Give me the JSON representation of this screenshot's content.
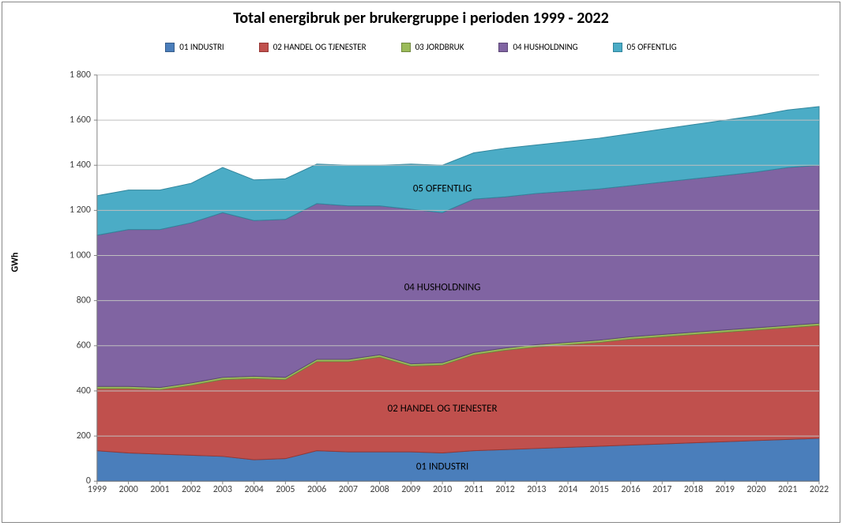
{
  "chart": {
    "type": "stacked-area",
    "title": "Total energibruk per brukergruppe i perioden 1999 - 2022",
    "title_fontsize": 20,
    "ylabel": "GWh",
    "background_color": "#ffffff",
    "border_color": "#888888",
    "axis_color": "#808080",
    "gridline_color": "#bfbfbf",
    "tick_fontsize": 12,
    "legend_fontsize": 11,
    "categories": [
      "1999",
      "2000",
      "2001",
      "2002",
      "2003",
      "2004",
      "2005",
      "2006",
      "2007",
      "2008",
      "2009",
      "2010",
      "2011",
      "2012",
      "2013",
      "2014",
      "2015",
      "2016",
      "2017",
      "2018",
      "2019",
      "2020",
      "2021",
      "2022"
    ],
    "ylim": [
      0,
      1800
    ],
    "ytick_step": 200,
    "ytick_format": "space_thousands",
    "series": [
      {
        "key": "01 INDUSTRI",
        "fill": "#4a7ebb",
        "stroke": "#385d8a",
        "values": [
          135,
          125,
          120,
          115,
          110,
          95,
          100,
          135,
          130,
          130,
          130,
          125,
          135,
          140,
          145,
          150,
          155,
          160,
          165,
          170,
          175,
          180,
          185,
          190
        ],
        "area_label": "01 INDUSTRI",
        "label_x_index": 11
      },
      {
        "key": "02 HANDEL OG TJENESTER",
        "fill": "#c0504d",
        "stroke": "#953735",
        "values": [
          275,
          285,
          285,
          310,
          340,
          360,
          350,
          395,
          400,
          420,
          380,
          390,
          425,
          440,
          450,
          455,
          460,
          470,
          475,
          480,
          485,
          490,
          495,
          500
        ],
        "area_label": "02 HANDEL OG TJENESTER",
        "label_x_index": 11
      },
      {
        "key": "03 JORDBRUK",
        "fill": "#9bbb59",
        "stroke": "#71893f",
        "values": [
          10,
          10,
          10,
          10,
          10,
          10,
          10,
          10,
          10,
          10,
          10,
          10,
          10,
          10,
          10,
          10,
          10,
          10,
          10,
          10,
          10,
          10,
          10,
          10
        ]
      },
      {
        "key": "04 HUSHOLDNING",
        "fill": "#8064a2",
        "stroke": "#5c4776",
        "values": [
          670,
          695,
          700,
          710,
          730,
          690,
          700,
          690,
          680,
          660,
          685,
          665,
          680,
          670,
          670,
          670,
          670,
          670,
          675,
          680,
          685,
          690,
          700,
          700
        ],
        "area_label": "04 HUSHOLDNING",
        "label_x_index": 11
      },
      {
        "key": "05 OFFENTLIG",
        "fill": "#4bacc6",
        "stroke": "#31859c",
        "values": [
          175,
          175,
          175,
          175,
          200,
          180,
          180,
          175,
          180,
          180,
          200,
          210,
          205,
          215,
          215,
          220,
          225,
          230,
          235,
          240,
          245,
          250,
          255,
          260
        ],
        "area_label": "05 OFFENTLIG",
        "label_x_index": 11
      }
    ]
  }
}
